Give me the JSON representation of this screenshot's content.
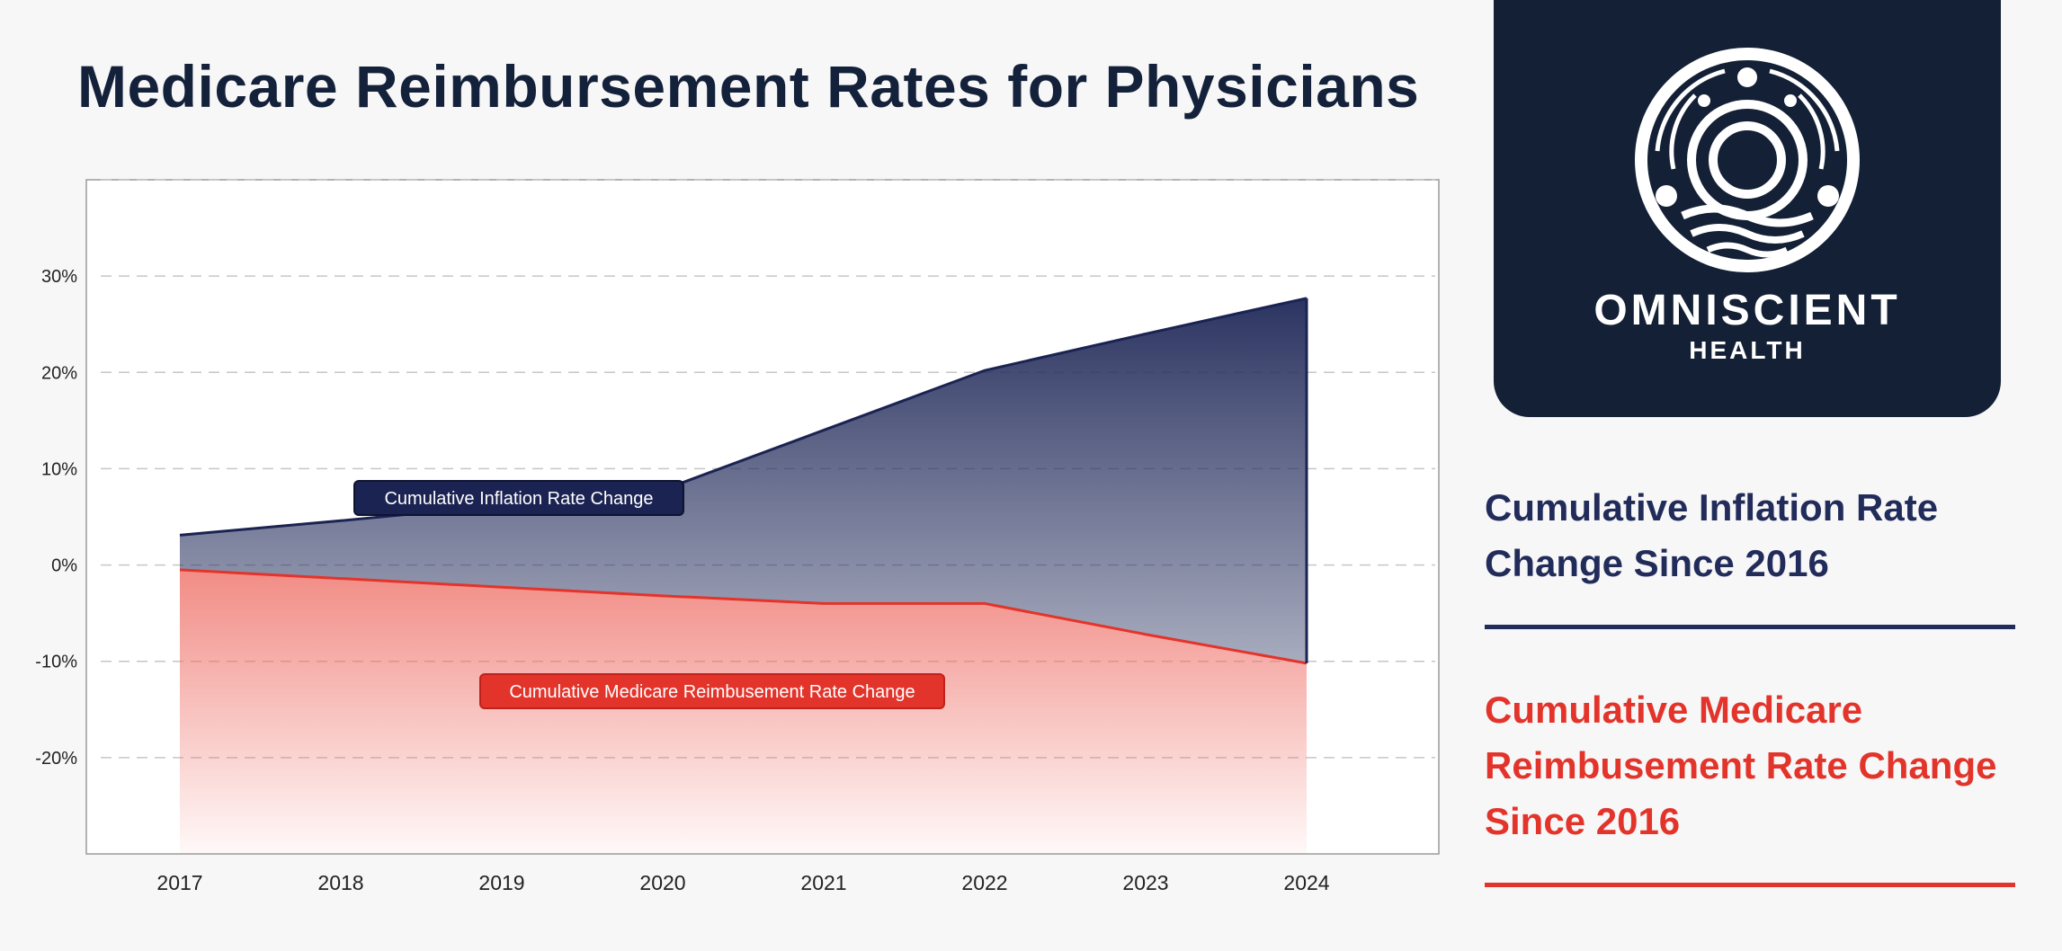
{
  "page": {
    "title": "Medicare Reimbursement Rates for Physicians"
  },
  "brand": {
    "name": "OMNISCIENT",
    "sub": "HEALTH",
    "icon": "omniscient-health-logo-icon"
  },
  "legend": {
    "inflation": "Cumulative Inflation Rate Change Since 2016",
    "medicare": "Cumulative Medicare Reimbusement Rate Change Since 2016"
  },
  "colors": {
    "inflation": "#222c5a",
    "medicare": "#e3342b",
    "background": "#f7f7f7",
    "brand_card": "#132035"
  },
  "chart_data": {
    "type": "area",
    "x": [
      "2017",
      "2018",
      "2019",
      "2020",
      "2021",
      "2022",
      "2023",
      "2024"
    ],
    "series": [
      {
        "name": "Cumulative Inflation Rate Change",
        "values": [
          3.1,
          4.6,
          6.2,
          7.8,
          14.0,
          20.2,
          24.0,
          27.7
        ]
      },
      {
        "name": "Cumulative Medicare Reimbusement Rate Change",
        "values": [
          -0.5,
          -1.4,
          -2.3,
          -3.2,
          -4.0,
          -4.0,
          -7.2,
          -10.2
        ]
      }
    ],
    "ylim": [
      -30,
      40
    ],
    "yticks": [
      -20,
      -10,
      0,
      10,
      20,
      30
    ],
    "ytick_labels": [
      "-20%",
      "-10%",
      "0%",
      "10%",
      "20%",
      "30%"
    ],
    "grid": true,
    "grid_extra": [
      40
    ],
    "xlabel": "",
    "ylabel": ""
  }
}
